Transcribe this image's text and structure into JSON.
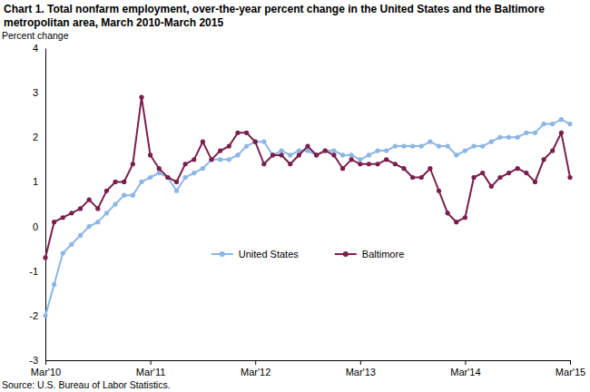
{
  "chart_data": {
    "type": "line",
    "title": "Chart 1. Total nonfarm employment, over-the-year percent change in the United States and the Baltimore metropolitan area, March 2010-March 2015",
    "y_label": "Percent change",
    "source": "Source: U.S. Bureau of Labor Statistics.",
    "categories": [
      "Mar'10",
      null,
      null,
      null,
      null,
      null,
      null,
      null,
      null,
      null,
      null,
      null,
      "Mar'11",
      null,
      null,
      null,
      null,
      null,
      null,
      null,
      null,
      null,
      null,
      null,
      "Mar'12",
      null,
      null,
      null,
      null,
      null,
      null,
      null,
      null,
      null,
      null,
      null,
      "Mar'13",
      null,
      null,
      null,
      null,
      null,
      null,
      null,
      null,
      null,
      null,
      null,
      "Mar'14",
      null,
      null,
      null,
      null,
      null,
      null,
      null,
      null,
      null,
      null,
      null,
      "Mar'15"
    ],
    "series": [
      {
        "name": "United States",
        "color": "#8cb6e6",
        "marker": "circle",
        "values": [
          -2.0,
          -1.3,
          -0.6,
          -0.4,
          -0.2,
          0.0,
          0.1,
          0.3,
          0.5,
          0.7,
          0.7,
          1.0,
          1.1,
          1.2,
          1.1,
          0.8,
          1.1,
          1.2,
          1.3,
          1.5,
          1.5,
          1.5,
          1.6,
          1.8,
          1.9,
          1.9,
          1.6,
          1.7,
          1.6,
          1.7,
          1.7,
          1.6,
          1.7,
          1.7,
          1.6,
          1.6,
          1.5,
          1.6,
          1.7,
          1.7,
          1.8,
          1.8,
          1.8,
          1.8,
          1.9,
          1.8,
          1.8,
          1.6,
          1.7,
          1.8,
          1.8,
          1.9,
          2.0,
          2.0,
          2.0,
          2.1,
          2.1,
          2.3,
          2.3,
          2.4,
          2.3
        ]
      },
      {
        "name": "Baltimore",
        "color": "#7a1f4c",
        "marker": "circle",
        "values": [
          -0.7,
          0.1,
          0.2,
          0.3,
          0.4,
          0.6,
          0.4,
          0.8,
          1.0,
          1.0,
          1.4,
          2.9,
          1.6,
          1.3,
          1.1,
          1.0,
          1.4,
          1.5,
          1.9,
          1.5,
          1.7,
          1.8,
          2.1,
          2.1,
          1.9,
          1.4,
          1.6,
          1.6,
          1.4,
          1.6,
          1.8,
          1.6,
          1.7,
          1.6,
          1.3,
          1.5,
          1.4,
          1.4,
          1.4,
          1.5,
          1.4,
          1.3,
          1.1,
          1.1,
          1.3,
          0.8,
          0.3,
          0.1,
          0.2,
          1.1,
          1.2,
          0.9,
          1.1,
          1.2,
          1.3,
          1.2,
          1.0,
          1.5,
          1.7,
          2.1,
          1.1
        ]
      }
    ],
    "ylim": [
      -3,
      4
    ],
    "yticks": [
      -3,
      -2,
      -1,
      0,
      1,
      2,
      3,
      4
    ],
    "grid": false,
    "legend": "lower center"
  }
}
